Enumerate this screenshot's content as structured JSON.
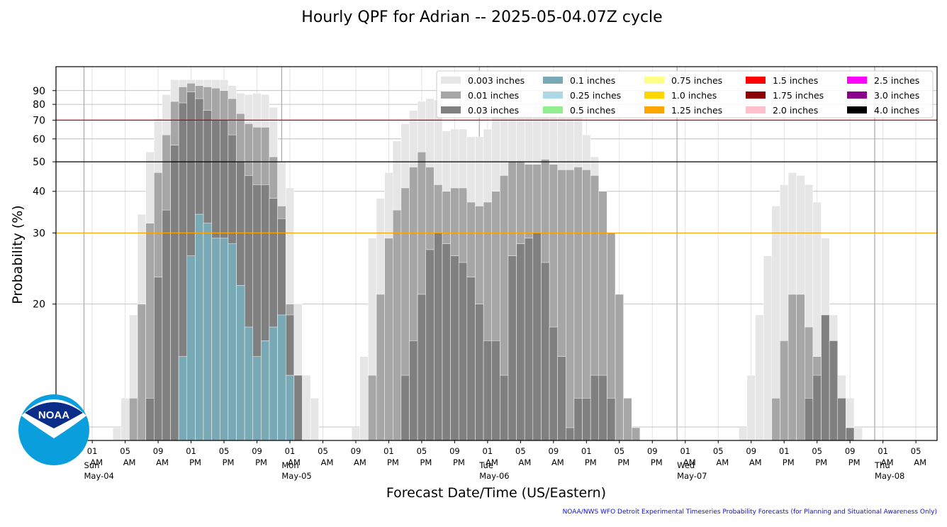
{
  "chart_data": {
    "type": "bar",
    "title": "Hourly QPF for Adrian -- 2025-05-04.07Z cycle",
    "xlabel": "Forecast Date/Time (US/Eastern)",
    "ylabel": "Probability (%)",
    "credit": "NOAA/NWS WFO Detroit Experimental Timeseries Probability Forecasts (for Planning and Situational Awareness Only)",
    "logo_text": "NOAA",
    "yticks": [
      20,
      30,
      40,
      50,
      60,
      70,
      80,
      90
    ],
    "reference_lines": [
      {
        "value": 30,
        "color": "#ffa500"
      },
      {
        "value": 50,
        "color": "#000000"
      },
      {
        "value": 70,
        "color": "#cc0000"
      }
    ],
    "x_hours": [
      -1,
      0,
      1,
      2,
      3,
      4,
      5,
      6,
      7,
      8,
      9,
      10,
      11,
      12,
      13,
      14,
      15,
      16,
      17,
      18,
      19,
      20,
      21,
      22,
      23,
      24,
      25,
      26,
      27,
      28,
      29,
      30,
      31,
      32,
      33,
      34,
      35,
      36,
      37,
      38,
      39,
      40,
      41,
      42,
      43,
      44,
      45,
      46,
      47,
      48,
      49,
      50,
      51,
      52,
      53,
      54,
      55,
      56,
      57,
      58,
      59,
      60,
      61,
      62,
      63,
      64,
      65,
      66,
      67,
      68,
      69,
      70,
      71,
      72,
      73,
      74,
      75,
      76,
      77,
      78,
      79,
      80,
      81,
      82,
      83,
      84,
      85,
      86,
      87,
      88,
      89,
      90,
      91,
      92,
      93,
      94,
      95,
      96,
      97,
      98,
      99,
      100,
      101,
      102,
      103,
      104,
      105
    ],
    "x_ticks": [
      {
        "hour": 1,
        "label": "01",
        "sub": "AM"
      },
      {
        "hour": 5,
        "label": "05",
        "sub": "AM"
      },
      {
        "hour": 9,
        "label": "09",
        "sub": "AM"
      },
      {
        "hour": 13,
        "label": "01",
        "sub": "PM"
      },
      {
        "hour": 17,
        "label": "05",
        "sub": "PM"
      },
      {
        "hour": 21,
        "label": "09",
        "sub": "PM"
      },
      {
        "hour": 25,
        "label": "01",
        "sub": "AM"
      },
      {
        "hour": 29,
        "label": "05",
        "sub": "AM"
      },
      {
        "hour": 33,
        "label": "09",
        "sub": "AM"
      },
      {
        "hour": 37,
        "label": "01",
        "sub": "PM"
      },
      {
        "hour": 41,
        "label": "05",
        "sub": "PM"
      },
      {
        "hour": 45,
        "label": "09",
        "sub": "PM"
      },
      {
        "hour": 49,
        "label": "01",
        "sub": "AM"
      },
      {
        "hour": 53,
        "label": "05",
        "sub": "AM"
      },
      {
        "hour": 57,
        "label": "09",
        "sub": "AM"
      },
      {
        "hour": 61,
        "label": "01",
        "sub": "PM"
      },
      {
        "hour": 65,
        "label": "05",
        "sub": "PM"
      },
      {
        "hour": 69,
        "label": "09",
        "sub": "PM"
      },
      {
        "hour": 73,
        "label": "01",
        "sub": "AM"
      },
      {
        "hour": 77,
        "label": "05",
        "sub": "AM"
      },
      {
        "hour": 81,
        "label": "09",
        "sub": "AM"
      },
      {
        "hour": 85,
        "label": "01",
        "sub": "PM"
      },
      {
        "hour": 89,
        "label": "05",
        "sub": "PM"
      },
      {
        "hour": 93,
        "label": "09",
        "sub": "PM"
      },
      {
        "hour": 97,
        "label": "01",
        "sub": "AM"
      },
      {
        "hour": 101,
        "label": "05",
        "sub": "AM"
      }
    ],
    "day_markers": [
      {
        "hour": 0,
        "day": "Sun",
        "date": "May-04"
      },
      {
        "hour": 24,
        "day": "Mon",
        "date": "May-05"
      },
      {
        "hour": 48,
        "day": "Tue",
        "date": "May-06"
      },
      {
        "hour": 72,
        "day": "Wed",
        "date": "May-07"
      },
      {
        "hour": 96,
        "day": "Thu",
        "date": "May-08"
      }
    ],
    "series": [
      {
        "name": "0.003 inches",
        "color": "#e6e6e6",
        "values": [
          0,
          0,
          0,
          0,
          0,
          13,
          14,
          19,
          34,
          54,
          71,
          87,
          99,
          99,
          99,
          99,
          99,
          99,
          99,
          94,
          88,
          87,
          88,
          87,
          78,
          50,
          41,
          20,
          15,
          14,
          0,
          0,
          0,
          0,
          13,
          16,
          29,
          38,
          46,
          59,
          68,
          76,
          82,
          84,
          83,
          64,
          65,
          65,
          61,
          61,
          65,
          73,
          73,
          73,
          74,
          75,
          79,
          80,
          81,
          81,
          79,
          79,
          62,
          52,
          38,
          29,
          16,
          0,
          0,
          0,
          0,
          0,
          0,
          0,
          0,
          0,
          0,
          0,
          0,
          0,
          0,
          13,
          15,
          19,
          26,
          36,
          42,
          46,
          45,
          42,
          37,
          29,
          19,
          15,
          14,
          13,
          0,
          0,
          0,
          0,
          0,
          0,
          0,
          0,
          0,
          0,
          0
        ]
      },
      {
        "name": "0.01 inches",
        "color": "#a6a6a6",
        "values": [
          0,
          0,
          0,
          0,
          0,
          0,
          0,
          14,
          20,
          32,
          46,
          62,
          82,
          93,
          96,
          94,
          93,
          92,
          90,
          84,
          74,
          68,
          66,
          66,
          52,
          36,
          20,
          15,
          0,
          0,
          0,
          0,
          0,
          0,
          0,
          0,
          15,
          21,
          29,
          35,
          41,
          48,
          54,
          48,
          42,
          40,
          41,
          41,
          37,
          36,
          37,
          40,
          45,
          50,
          50,
          49,
          49,
          51,
          49,
          47,
          47,
          48,
          47,
          45,
          40,
          30,
          21,
          14,
          13,
          0,
          0,
          0,
          0,
          0,
          0,
          0,
          0,
          0,
          0,
          0,
          0,
          0,
          0,
          0,
          0,
          14,
          17,
          21,
          21,
          18,
          16,
          14,
          13,
          0,
          0,
          0,
          0,
          0,
          0,
          0,
          0,
          0,
          0,
          0,
          0,
          0,
          0
        ]
      },
      {
        "name": "0.03 inches",
        "color": "#808080",
        "values": [
          0,
          0,
          0,
          0,
          0,
          0,
          0,
          0,
          0,
          14,
          23,
          35,
          57,
          81,
          89,
          84,
          76,
          70,
          70,
          62,
          50,
          45,
          42,
          42,
          38,
          33,
          19,
          15,
          0,
          0,
          0,
          0,
          0,
          0,
          0,
          0,
          0,
          0,
          0,
          0,
          15,
          17,
          21,
          27,
          30,
          28,
          26,
          25,
          23,
          20,
          17,
          17,
          15,
          26,
          28,
          29,
          30,
          25,
          18,
          16,
          13,
          14,
          14,
          15,
          15,
          14,
          0,
          0,
          0,
          0,
          0,
          0,
          0,
          0,
          0,
          0,
          0,
          0,
          0,
          0,
          0,
          0,
          0,
          0,
          0,
          0,
          0,
          0,
          0,
          14,
          15,
          19,
          17,
          14,
          13,
          0,
          0,
          0,
          0,
          0,
          0,
          0,
          0,
          0,
          0,
          0,
          0
        ]
      },
      {
        "name": "0.1 inches",
        "color": "#79a9b4",
        "values": [
          0,
          0,
          0,
          0,
          0,
          0,
          0,
          0,
          0,
          0,
          0,
          0,
          0,
          16,
          26,
          34,
          32,
          29,
          29,
          28,
          22,
          18,
          16,
          17,
          18,
          19,
          15,
          0,
          0,
          0,
          0,
          0,
          0,
          0,
          0,
          0,
          0,
          0,
          0,
          0,
          0,
          0,
          0,
          0,
          0,
          0,
          0,
          0,
          0,
          0,
          0,
          0,
          0,
          0,
          0,
          0,
          0,
          0,
          0,
          0,
          0,
          0,
          0,
          0,
          0,
          0,
          0,
          0,
          0,
          0,
          0,
          0,
          0,
          0,
          0,
          0,
          0,
          0,
          0,
          0,
          0,
          0,
          0,
          0,
          0,
          0,
          0,
          0,
          0,
          0,
          0,
          0,
          0,
          0,
          0,
          0,
          0,
          0,
          0,
          0,
          0,
          0,
          0,
          0,
          0,
          0,
          0
        ]
      },
      {
        "name": "0.25 inches",
        "color": "#add8e6",
        "values": []
      },
      {
        "name": "0.5 inches",
        "color": "#90ee90",
        "values": []
      },
      {
        "name": "0.75 inches",
        "color": "#ffff88",
        "values": []
      },
      {
        "name": "1.0 inches",
        "color": "#ffd700",
        "values": []
      },
      {
        "name": "1.25 inches",
        "color": "#ffa500",
        "values": []
      },
      {
        "name": "1.5 inches",
        "color": "#ff0000",
        "values": []
      },
      {
        "name": "1.75 inches",
        "color": "#8b0000",
        "values": []
      },
      {
        "name": "2.0 inches",
        "color": "#ffc0cb",
        "values": []
      },
      {
        "name": "2.5 inches",
        "color": "#ff00ff",
        "values": []
      },
      {
        "name": "3.0 inches",
        "color": "#8b008b",
        "values": []
      },
      {
        "name": "4.0 inches",
        "color": "#000000",
        "values": []
      }
    ]
  }
}
